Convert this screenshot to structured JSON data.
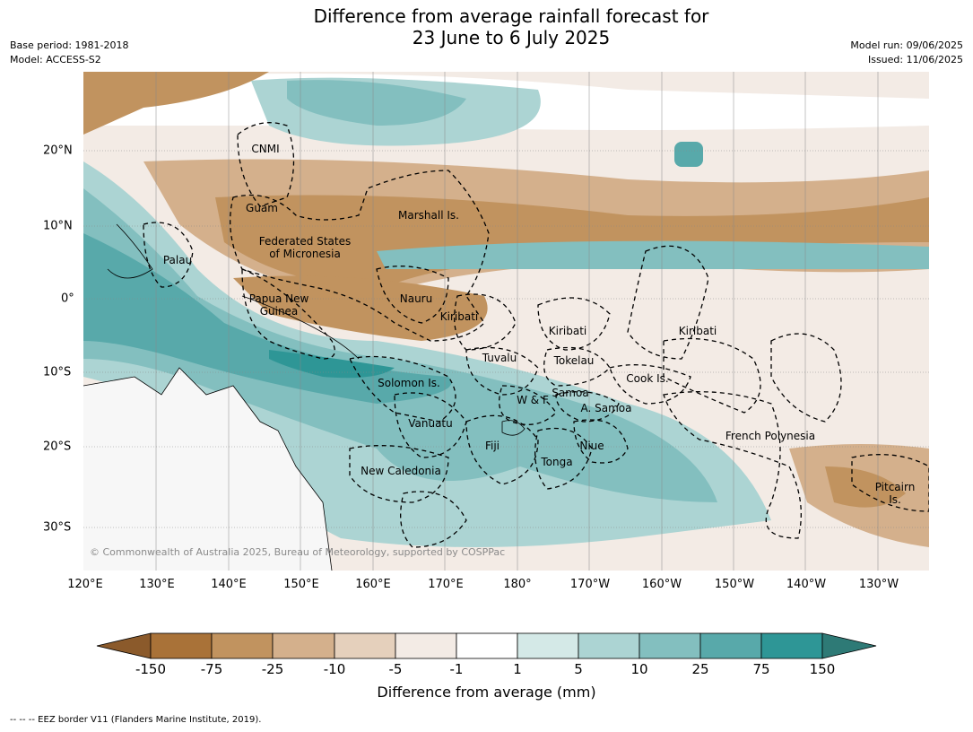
{
  "title_line1": "Difference from average rainfall forecast for",
  "title_line2": "23 June to 6 July 2025",
  "meta_left": [
    "Base period: 1981-2018",
    "Model: ACCESS-S2"
  ],
  "meta_right": [
    "Model run: 09/06/2025",
    "Issued: 11/06/2025"
  ],
  "lon_labels": [
    "120°E",
    "130°E",
    "140°E",
    "150°E",
    "160°E",
    "170°E",
    "180°",
    "170°W",
    "160°W",
    "150°W",
    "140°W",
    "130°W"
  ],
  "lat_labels": [
    "20°N",
    "10°N",
    "0°",
    "10°S",
    "20°S",
    "30°S"
  ],
  "place_labels": [
    "CNMI",
    "Guam",
    "Marshall Is.",
    "Federated States",
    "of Micronesia",
    "Palau",
    "Nauru",
    "Papua New",
    "Guinea",
    "Kiribati",
    "Kiribati",
    "Kiribati",
    "Tuvalu",
    "Tokelau",
    "Cook Is.",
    "Solomon Is.",
    "W & F",
    "Samoa",
    "A. Samoa",
    "Vanuatu",
    "Fiji",
    "Niue",
    "Tonga",
    "New Caledonia",
    "French Polynesia",
    "Pitcairn",
    "Is."
  ],
  "copyright": "© Commonwealth of Australia 2025, Bureau of Meteorology, supported by COSPPac",
  "colorbar": {
    "labels": [
      "-150",
      "-75",
      "-25",
      "-10",
      "-5",
      "-1",
      "1",
      "5",
      "10",
      "25",
      "75",
      "150"
    ],
    "colors": [
      "#8b5a2b",
      "#a97238",
      "#c1935f",
      "#d4b08c",
      "#e5d0bc",
      "#f3ebe5",
      "#ffffff",
      "#d4e9e7",
      "#acd4d3",
      "#83bfbf",
      "#58a9aa",
      "#2e9696",
      "#2e7a76"
    ],
    "title": "Difference from average (mm)"
  },
  "footer": "--  --  -- EEZ border V11 (Flanders Marine Institute, 2019)."
}
